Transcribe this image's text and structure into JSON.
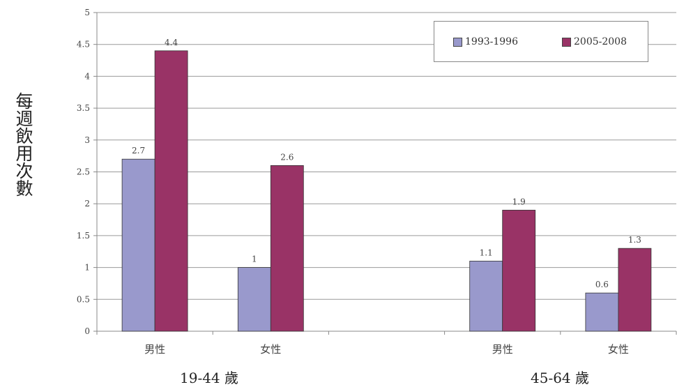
{
  "chart_data": {
    "type": "bar",
    "ylabel": "每週飲用次數",
    "ylim": [
      0,
      5
    ],
    "yticks": [
      "0",
      "0.5",
      "1",
      "1.5",
      "2",
      "2.5",
      "3",
      "3.5",
      "4",
      "4.5",
      "5"
    ],
    "grid": true,
    "legend_position": "top-right",
    "categories": [
      "男性",
      "女性",
      "男性",
      "女性"
    ],
    "groups": [
      "19-44 歲",
      "45-64 歲"
    ],
    "series": [
      {
        "name": "1993-1996",
        "color": "#9999cc",
        "values": [
          2.7,
          1,
          1.1,
          0.6
        ],
        "labels": [
          "2.7",
          "1",
          "1.1",
          "0.6"
        ]
      },
      {
        "name": "2005-2008",
        "color": "#993366",
        "values": [
          4.4,
          2.6,
          1.9,
          1.3
        ],
        "labels": [
          "4.4",
          "2.6",
          "1.9",
          "1.3"
        ]
      }
    ]
  }
}
